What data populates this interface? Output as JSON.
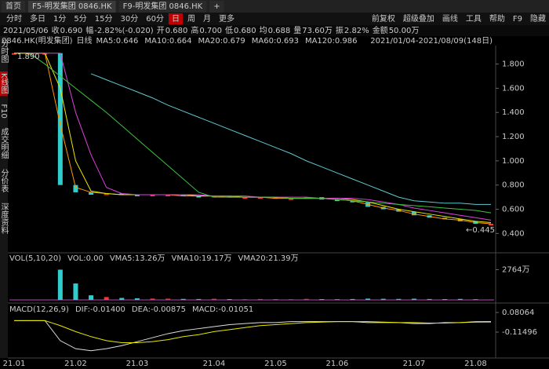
{
  "tabs": [
    "首页",
    "F5-明发集团 0846.HK",
    "F9-明发集团 0846.HK",
    "+"
  ],
  "toolbar": {
    "periods": [
      "分时",
      "多日",
      "1分",
      "5分",
      "15分",
      "30分",
      "60分",
      "日",
      "周",
      "月",
      "更多"
    ],
    "tools": [
      "前复权",
      "超级叠加",
      "画线",
      "工具",
      "帮助",
      "F9",
      "隐藏"
    ]
  },
  "sidebar": [
    "分时图",
    "K线图",
    "F10",
    "成交明细",
    "分价表",
    "深度资料"
  ],
  "info": [
    {
      "text": "2021/05/06",
      "color": "#cccccc"
    },
    {
      "text": "收",
      "color": "#999999"
    },
    {
      "text": "0.690",
      "color": "#33cc33"
    },
    {
      "text": "幅",
      "color": "#999999"
    },
    {
      "text": "-2.82%(-0.020)",
      "color": "#33cc33"
    },
    {
      "text": "开",
      "color": "#999999"
    },
    {
      "text": "0.680",
      "color": "#33cc33"
    },
    {
      "text": "高",
      "color": "#999999"
    },
    {
      "text": "0.700",
      "color": "#33cc33"
    },
    {
      "text": "低",
      "color": "#999999"
    },
    {
      "text": "0.680",
      "color": "#33cc33"
    },
    {
      "text": "均",
      "color": "#999999"
    },
    {
      "text": "0.688",
      "color": "#33cc33"
    },
    {
      "text": "量",
      "color": "#999999"
    },
    {
      "text": "73.60万",
      "color": "#cccccc"
    },
    {
      "text": "振",
      "color": "#999999"
    },
    {
      "text": "2.82%",
      "color": "#cccccc"
    },
    {
      "text": "金额",
      "color": "#999999"
    },
    {
      "text": "50.00万",
      "color": "#cccccc"
    }
  ],
  "chart_data": [
    {
      "type": "line",
      "title": "0846.HK(明发集团)",
      "subtitle": "日线",
      "range": "2021/01/04-2021/08/09(148日)",
      "values": [
        1.89,
        1.89,
        1.89,
        0.8,
        0.74,
        0.72,
        0.73,
        0.72,
        0.71,
        0.72,
        0.72,
        0.71,
        0.7,
        0.71,
        0.7,
        0.7,
        0.7,
        0.69,
        0.69,
        0.7,
        0.68,
        0.67,
        0.66,
        0.62,
        0.6,
        0.58,
        0.55,
        0.53,
        0.52,
        0.5,
        0.48,
        0.48
      ],
      "up_color": "#ff3333",
      "down_color": "#33cccc",
      "series": [
        {
          "name": "MA5:0.646",
          "color": "#ff9900",
          "values": [
            1.89,
            1.89,
            1.89,
            1.3,
            0.78,
            0.74,
            0.73,
            0.72,
            0.72,
            0.72,
            0.72,
            0.71,
            0.71,
            0.71,
            0.7,
            0.7,
            0.7,
            0.69,
            0.69,
            0.69,
            0.69,
            0.68,
            0.67,
            0.64,
            0.61,
            0.59,
            0.56,
            0.54,
            0.52,
            0.51,
            0.49,
            0.48
          ]
        },
        {
          "name": "MA10:0.664",
          "color": "#e8e800",
          "values": [
            1.89,
            1.89,
            1.89,
            1.6,
            1.0,
            0.75,
            0.73,
            0.72,
            0.72,
            0.72,
            0.72,
            0.72,
            0.71,
            0.71,
            0.71,
            0.7,
            0.7,
            0.7,
            0.69,
            0.69,
            0.69,
            0.69,
            0.68,
            0.66,
            0.63,
            0.6,
            0.58,
            0.56,
            0.54,
            0.52,
            0.5,
            0.49
          ]
        },
        {
          "name": "MA20:0.679",
          "color": "#e040e0",
          "values": [
            null,
            1.89,
            1.89,
            1.89,
            1.4,
            1.05,
            0.78,
            0.73,
            0.72,
            0.72,
            0.72,
            0.72,
            0.72,
            0.71,
            0.71,
            0.71,
            0.7,
            0.7,
            0.7,
            0.7,
            0.69,
            0.69,
            0.69,
            0.68,
            0.66,
            0.64,
            0.61,
            0.59,
            0.57,
            0.55,
            0.53,
            0.51
          ]
        },
        {
          "name": "MA60:0.693",
          "color": "#40c040",
          "values": [
            null,
            1.89,
            1.8,
            1.7,
            1.6,
            1.5,
            1.4,
            1.29,
            1.18,
            1.07,
            0.96,
            0.85,
            0.74,
            0.7,
            0.7,
            0.7,
            0.7,
            0.7,
            0.69,
            0.69,
            0.69,
            0.68,
            0.67,
            0.66,
            0.65,
            0.64,
            0.63,
            0.62,
            0.61,
            0.6,
            0.59,
            0.57
          ]
        },
        {
          "name": "MA120:0.986",
          "color": "#60c8d0",
          "values": [
            null,
            null,
            null,
            null,
            null,
            1.72,
            1.67,
            1.62,
            1.57,
            1.52,
            1.46,
            1.41,
            1.36,
            1.31,
            1.26,
            1.21,
            1.16,
            1.11,
            1.06,
            1.0,
            0.95,
            0.9,
            0.85,
            0.8,
            0.75,
            0.7,
            0.67,
            0.66,
            0.65,
            0.65,
            0.64,
            0.64
          ]
        }
      ],
      "ylim": [
        0.24,
        1.94
      ],
      "yticks": [
        {
          "value": 0.4,
          "label": "0.400"
        },
        {
          "value": 0.6,
          "label": "0.600"
        },
        {
          "value": 0.8,
          "label": "0.800"
        },
        {
          "value": 1.0,
          "label": "1.000"
        },
        {
          "value": 1.2,
          "label": "1.200"
        },
        {
          "value": 1.4,
          "label": "1.400"
        },
        {
          "value": 1.6,
          "label": "1.600"
        },
        {
          "value": 1.8,
          "label": "1.800"
        }
      ],
      "annotations": [
        "1.890",
        "←0.445"
      ]
    },
    {
      "type": "bar",
      "legend": [
        {
          "text": "VOL(5,10,20)",
          "color": "#cccccc"
        },
        {
          "text": "VOL:0.00",
          "color": "#cccccc"
        },
        {
          "text": "VMA5:13.26万",
          "color": "#cccccc"
        },
        {
          "text": "VMA10:19.17万",
          "color": "#e8e800"
        },
        {
          "text": "VMA20:21.39万",
          "color": "#e040e0"
        }
      ],
      "values": [
        0,
        0,
        0,
        2764,
        1500,
        420,
        260,
        180,
        150,
        120,
        110,
        90,
        80,
        100,
        70,
        60,
        80,
        50,
        60,
        90,
        70,
        60,
        80,
        120,
        100,
        90,
        110,
        80,
        70,
        90,
        60,
        40
      ],
      "ylim": [
        0,
        3300
      ],
      "yticks": [
        {
          "value": 2764,
          "label": "2764万"
        }
      ]
    },
    {
      "type": "line",
      "title": "MACD(12,26,9)",
      "categories": [
        "21.01",
        null,
        null,
        null,
        "21.02",
        null,
        null,
        null,
        "21.03",
        null,
        null,
        null,
        null,
        "21.04",
        null,
        null,
        null,
        "21.05",
        null,
        null,
        null,
        "21.06",
        null,
        null,
        null,
        null,
        "21.07",
        null,
        null,
        null,
        "21.08",
        null
      ],
      "series": [
        {
          "name": "DIF:-0.01400",
          "color": "#dddddd",
          "values": [
            0,
            0,
            0,
            -0.2,
            -0.28,
            -0.3,
            -0.28,
            -0.25,
            -0.21,
            -0.17,
            -0.13,
            -0.1,
            -0.08,
            -0.06,
            -0.04,
            -0.03,
            -0.02,
            -0.02,
            -0.01,
            -0.01,
            -0.01,
            -0.01,
            -0.01,
            -0.02,
            -0.02,
            -0.02,
            -0.03,
            -0.03,
            -0.02,
            -0.02,
            -0.015,
            -0.014
          ]
        },
        {
          "name": "DEA:-0.00875",
          "color": "#e8e800",
          "values": [
            0,
            0,
            0,
            -0.05,
            -0.11,
            -0.16,
            -0.2,
            -0.22,
            -0.22,
            -0.21,
            -0.19,
            -0.16,
            -0.14,
            -0.11,
            -0.09,
            -0.07,
            -0.05,
            -0.04,
            -0.03,
            -0.02,
            -0.015,
            -0.01,
            -0.01,
            -0.01,
            -0.015,
            -0.02,
            -0.02,
            -0.025,
            -0.025,
            -0.02,
            -0.01,
            -0.00875
          ]
        }
      ],
      "extra_legend": {
        "text": "MACD:-0.01051",
        "color": "#e040e0"
      },
      "ylim": [
        -0.365,
        0.159
      ],
      "yticks": [
        0.08064,
        -0.11496
      ]
    }
  ]
}
